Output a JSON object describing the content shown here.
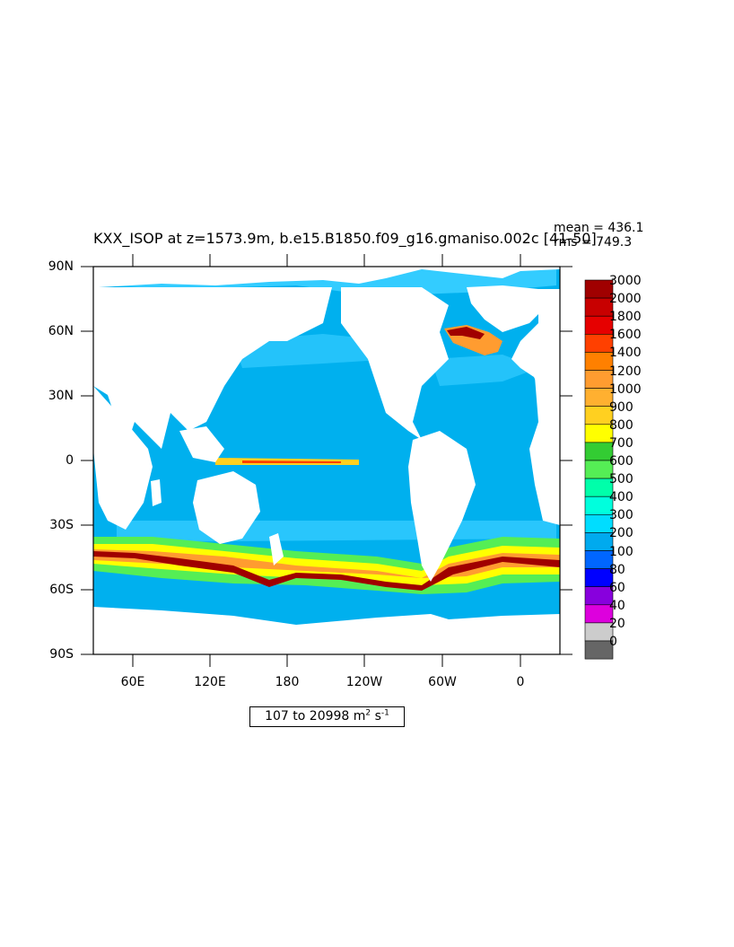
{
  "title": "KXX_ISOP at z=1573.9m, b.e15.B1850.f09_g16.gmaniso.002c [41-50]",
  "stats": {
    "mean": "mean = 436.1",
    "rms": "rms = 749.3"
  },
  "lat_labels": [
    "90N",
    "60N",
    "30N",
    "0",
    "30S",
    "60S",
    "90S"
  ],
  "lon_labels": [
    "60E",
    "120E",
    "180",
    "120W",
    "60W",
    "0"
  ],
  "colorbar": {
    "levels": [
      "3000",
      "2000",
      "1800",
      "1600",
      "1400",
      "1200",
      "1000",
      "900",
      "800",
      "700",
      "600",
      "500",
      "400",
      "300",
      "200",
      "100",
      "80",
      "60",
      "40",
      "20",
      "0"
    ],
    "colors": [
      "#a00000",
      "#c80000",
      "#e60000",
      "#ff4000",
      "#ff8000",
      "#ff9c30",
      "#ffb030",
      "#ffd020",
      "#ffff00",
      "#33cc33",
      "#55ee55",
      "#00ffaa",
      "#00ffdd",
      "#00ddff",
      "#00aaee",
      "#0066ff",
      "#0000ff",
      "#8800dd",
      "#dd00dd",
      "#cccccc",
      "#666666"
    ]
  },
  "range_box": {
    "text": "107 to 20998 m",
    "sup1": "2",
    "mid": " s",
    "sup2": "-1"
  },
  "palette": {
    "ocean": "#00b0ee",
    "ocean_light": "#33ccff",
    "land": "#ffffff"
  }
}
